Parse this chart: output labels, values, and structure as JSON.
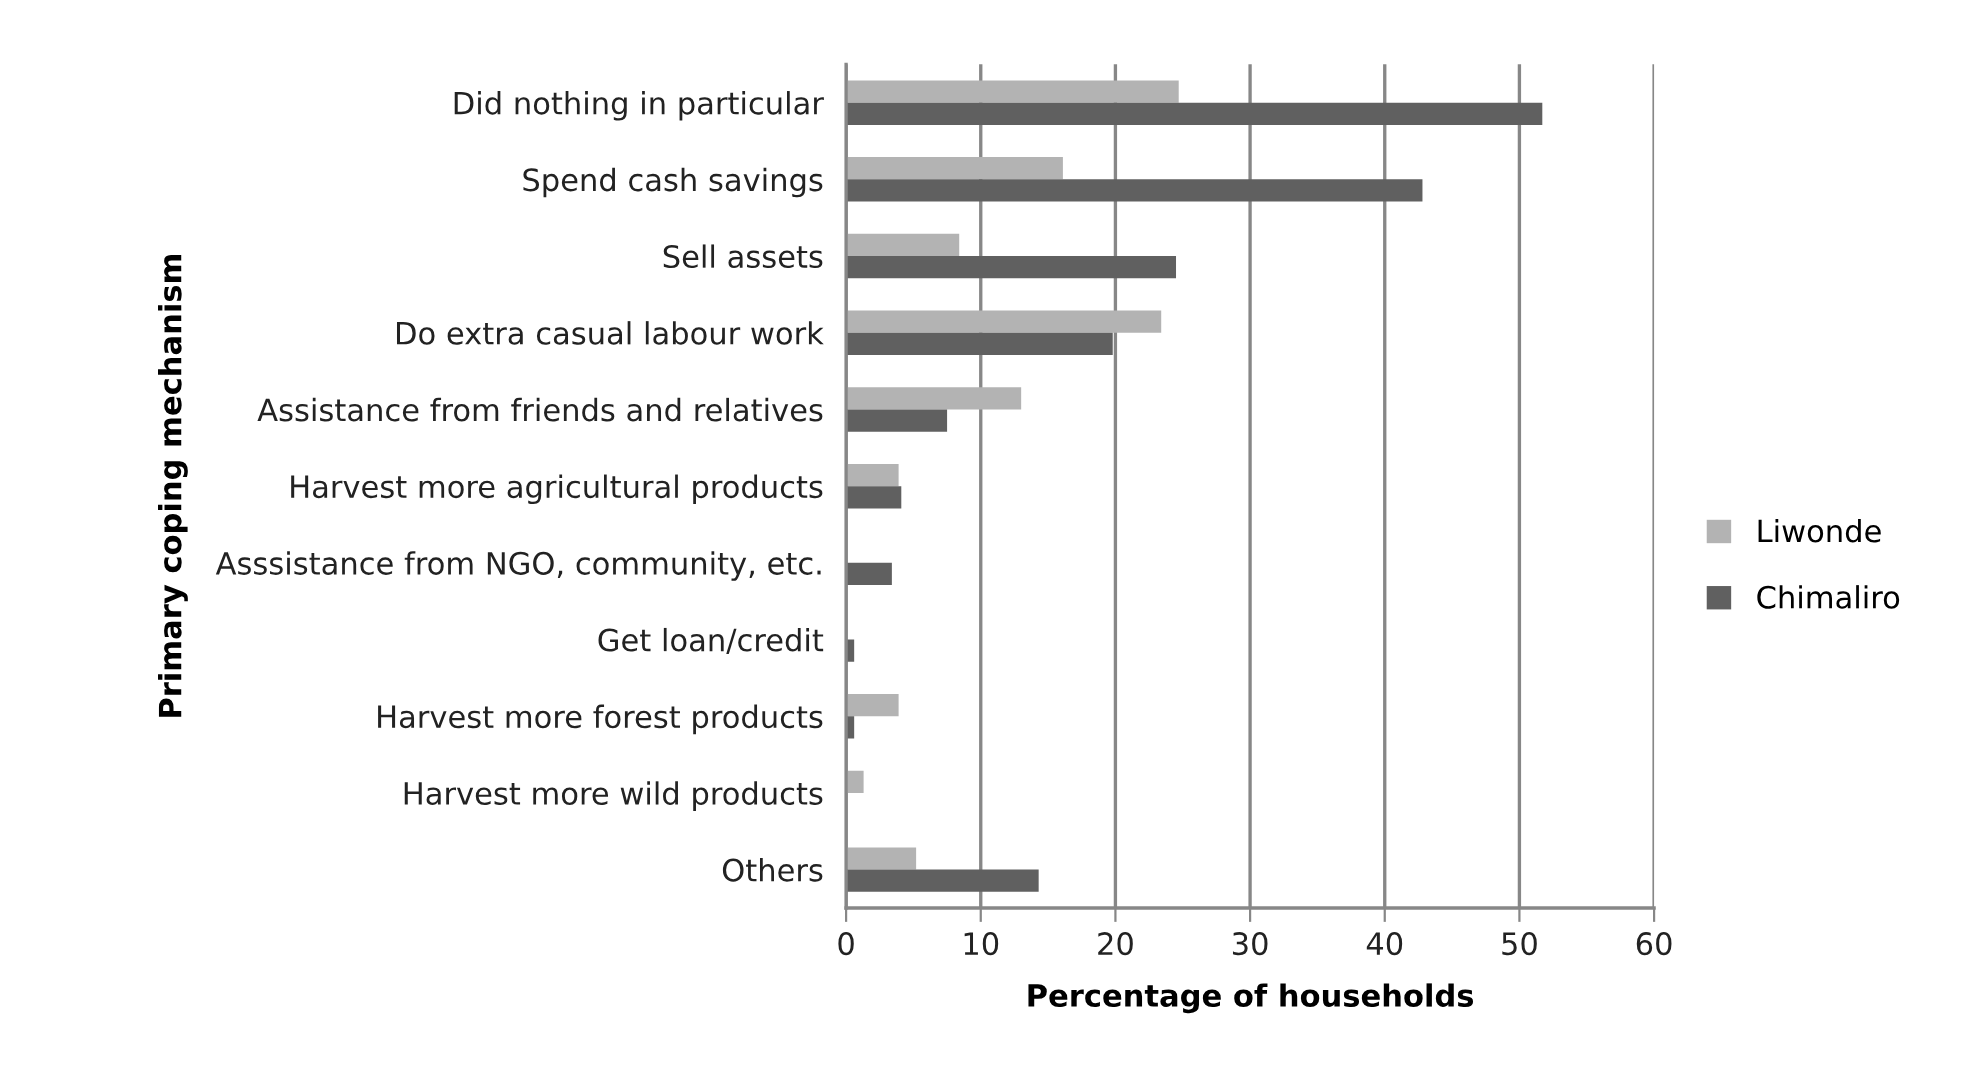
{
  "chart_data": {
    "type": "bar",
    "orientation": "horizontal",
    "xlabel": "Percentage of households",
    "ylabel": "Primary coping mechanism",
    "categories": [
      "Did nothing in particular",
      "Spend cash savings",
      "Sell assets",
      "Do extra casual labour work",
      "Assistance from friends and relatives",
      "Harvest more agricultural products",
      "Asssistance from NGO, community, etc.",
      "Get loan/credit",
      "Harvest more forest products",
      "Harvest more wild products",
      "Others"
    ],
    "series": [
      {
        "name": "Liwonde",
        "color": "#b3b3b3",
        "values": [
          24.7,
          16.1,
          8.4,
          23.4,
          13.0,
          3.9,
          0,
          0,
          3.9,
          1.3,
          5.2
        ]
      },
      {
        "name": "Chimaliro",
        "color": "#606060",
        "values": [
          51.7,
          42.8,
          24.5,
          19.8,
          7.5,
          4.1,
          3.4,
          0.6,
          0.6,
          0,
          14.3
        ]
      }
    ],
    "xlim": [
      0,
      60
    ],
    "xticks": [
      0,
      10,
      20,
      30,
      40,
      50,
      60
    ],
    "grid": "x",
    "legend": "right"
  }
}
